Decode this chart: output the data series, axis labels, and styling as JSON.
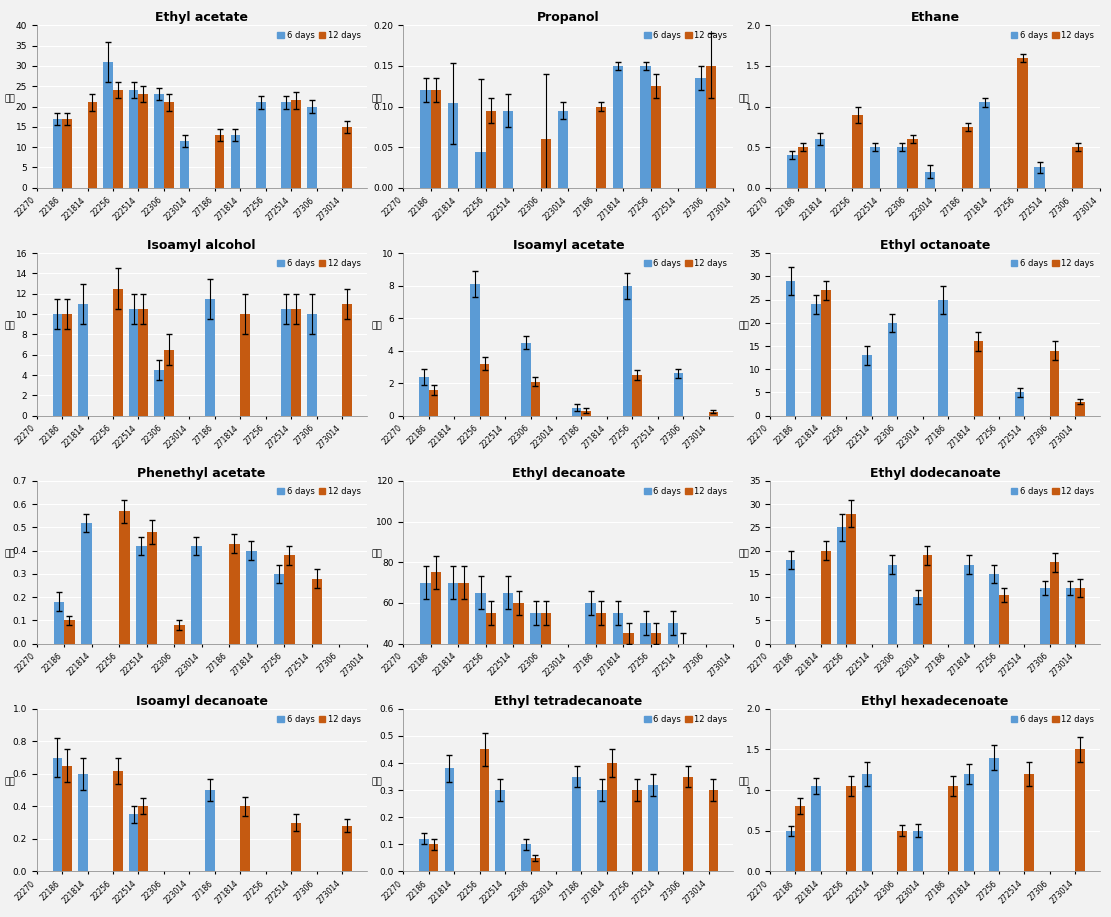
{
  "categories": [
    "22270",
    "22186",
    "221814",
    "22256",
    "222514",
    "22306",
    "223014",
    "27186",
    "271814",
    "27256",
    "272514",
    "27306",
    "273014"
  ],
  "blue_color": "#5B9BD5",
  "orange_color": "#C55A11",
  "legend_labels": [
    "6 days",
    "12 days"
  ],
  "ylabel": "백만",
  "bg_color": "#F2F2F2",
  "subplots": [
    {
      "title": "Ethyl acetate",
      "ylim": [
        0,
        40
      ],
      "yticks": [
        0,
        5,
        10,
        15,
        20,
        25,
        30,
        35,
        40
      ],
      "blue_vals": [
        0,
        17,
        0,
        31,
        24,
        23,
        11.5,
        0,
        13,
        21,
        21,
        20,
        0
      ],
      "blue_errs": [
        0,
        1.5,
        0,
        5,
        2,
        1.5,
        1.5,
        0,
        1.5,
        1.5,
        1.5,
        1.5,
        0
      ],
      "orange_vals": [
        0,
        17,
        21,
        24,
        23,
        21,
        0,
        13,
        0,
        0,
        21.5,
        0,
        15
      ],
      "orange_errs": [
        0,
        1.5,
        2,
        2,
        2,
        2,
        0,
        1.5,
        0,
        0,
        2,
        0,
        1.5
      ]
    },
    {
      "title": "Propanol",
      "ylim": [
        0,
        0.2
      ],
      "yticks": [
        0,
        0.05,
        0.1,
        0.15,
        0.2
      ],
      "blue_vals": [
        0,
        0.12,
        0.104,
        0.044,
        0.095,
        0,
        0.095,
        0,
        0.15,
        0.15,
        0,
        0.135,
        0
      ],
      "blue_errs": [
        0,
        0.015,
        0.05,
        0.09,
        0.02,
        0,
        0.01,
        0,
        0.005,
        0.005,
        0,
        0.015,
        0
      ],
      "orange_vals": [
        0,
        0.12,
        0,
        0.095,
        0,
        0.06,
        0,
        0.1,
        0,
        0.125,
        0,
        0.15,
        0
      ],
      "orange_errs": [
        0,
        0.015,
        0,
        0.015,
        0,
        0.08,
        0,
        0.005,
        0,
        0.015,
        0,
        0.04,
        0
      ]
    },
    {
      "title": "Ethane",
      "ylim": [
        0,
        2
      ],
      "yticks": [
        0,
        0.5,
        1.0,
        1.5,
        2.0
      ],
      "blue_vals": [
        0,
        0.4,
        0.6,
        0,
        0.5,
        0.5,
        0.2,
        0,
        1.05,
        0,
        0.25,
        0,
        0
      ],
      "blue_errs": [
        0,
        0.05,
        0.07,
        0,
        0.05,
        0.05,
        0.08,
        0,
        0.05,
        0,
        0.07,
        0,
        0
      ],
      "orange_vals": [
        0,
        0.5,
        0,
        0.9,
        0,
        0.6,
        0,
        0.75,
        0,
        1.6,
        0,
        0.5,
        0
      ],
      "orange_errs": [
        0,
        0.05,
        0,
        0.1,
        0,
        0.05,
        0,
        0.05,
        0,
        0.05,
        0,
        0.05,
        0
      ]
    },
    {
      "title": "Isoamyl alcohol",
      "ylim": [
        0,
        16
      ],
      "yticks": [
        0,
        2,
        4,
        6,
        8,
        10,
        12,
        14,
        16
      ],
      "blue_vals": [
        0,
        10,
        11,
        0,
        10.5,
        4.5,
        0,
        11.5,
        0,
        0,
        10.5,
        10,
        0
      ],
      "blue_errs": [
        0,
        1.5,
        2,
        0,
        1.5,
        1,
        0,
        2,
        0,
        0,
        1.5,
        2,
        0
      ],
      "orange_vals": [
        0,
        10,
        0,
        12.5,
        10.5,
        6.5,
        0,
        0,
        10,
        0,
        10.5,
        0,
        11
      ],
      "orange_errs": [
        0,
        1.5,
        0,
        2,
        1.5,
        1.5,
        0,
        0,
        2,
        0,
        1.5,
        0,
        1.5
      ]
    },
    {
      "title": "Isoamyl acetate",
      "ylim": [
        0,
        10
      ],
      "yticks": [
        0,
        2,
        4,
        6,
        8,
        10
      ],
      "blue_vals": [
        0,
        2.4,
        0,
        8.1,
        0,
        4.5,
        0,
        0.5,
        0,
        8.0,
        0,
        2.6,
        0
      ],
      "blue_errs": [
        0,
        0.5,
        0,
        0.8,
        0,
        0.4,
        0,
        0.2,
        0,
        0.8,
        0,
        0.3,
        0
      ],
      "orange_vals": [
        0,
        1.6,
        0,
        3.2,
        0,
        2.1,
        0,
        0.3,
        0,
        2.5,
        0,
        0,
        0.25
      ],
      "orange_errs": [
        0,
        0.3,
        0,
        0.4,
        0,
        0.3,
        0,
        0.15,
        0,
        0.3,
        0,
        0,
        0.1
      ]
    },
    {
      "title": "Ethyl octanoate",
      "ylim": [
        0,
        35
      ],
      "yticks": [
        0,
        5,
        10,
        15,
        20,
        25,
        30,
        35
      ],
      "blue_vals": [
        0,
        29,
        24,
        0,
        13,
        20,
        0,
        25,
        0,
        0,
        5,
        0,
        0
      ],
      "blue_errs": [
        0,
        3,
        2,
        0,
        2,
        2,
        0,
        3,
        0,
        0,
        1,
        0,
        0
      ],
      "orange_vals": [
        0,
        0,
        27,
        0,
        0,
        0,
        0,
        0,
        16,
        0,
        0,
        14,
        3
      ],
      "orange_errs": [
        0,
        0,
        2,
        0,
        0,
        0,
        0,
        0,
        2,
        0,
        0,
        2,
        0.5
      ]
    },
    {
      "title": "Phenethyl acetate",
      "ylim": [
        0,
        0.7
      ],
      "yticks": [
        0,
        0.1,
        0.2,
        0.3,
        0.4,
        0.5,
        0.6,
        0.7
      ],
      "blue_vals": [
        0,
        0.18,
        0.52,
        0,
        0.42,
        0,
        0.42,
        0,
        0.4,
        0.3,
        0,
        0,
        0
      ],
      "blue_errs": [
        0,
        0.04,
        0.04,
        0,
        0.04,
        0,
        0.04,
        0,
        0.04,
        0.04,
        0,
        0,
        0
      ],
      "orange_vals": [
        0,
        0.1,
        0,
        0.57,
        0.48,
        0.08,
        0,
        0.43,
        0,
        0.38,
        0.28,
        0,
        0
      ],
      "orange_errs": [
        0,
        0.02,
        0,
        0.05,
        0.05,
        0.02,
        0,
        0.04,
        0,
        0.04,
        0.04,
        0,
        0
      ]
    },
    {
      "title": "Ethyl decanoate",
      "ylim": [
        40,
        120
      ],
      "yticks": [
        40,
        60,
        80,
        100,
        120
      ],
      "blue_vals": [
        0,
        70,
        70,
        65,
        65,
        55,
        0,
        60,
        55,
        50,
        50,
        0,
        0
      ],
      "blue_errs": [
        0,
        8,
        8,
        8,
        8,
        6,
        0,
        6,
        6,
        6,
        6,
        0,
        0
      ],
      "orange_vals": [
        0,
        75,
        70,
        55,
        60,
        55,
        0,
        55,
        45,
        45,
        40,
        35,
        0
      ],
      "orange_errs": [
        0,
        8,
        8,
        6,
        6,
        6,
        0,
        6,
        5,
        5,
        5,
        4,
        0
      ]
    },
    {
      "title": "Ethyl dodecanoate",
      "ylim": [
        0,
        35
      ],
      "yticks": [
        0,
        5,
        10,
        15,
        20,
        25,
        30,
        35
      ],
      "blue_vals": [
        0,
        18,
        0,
        25,
        0,
        17,
        10,
        0,
        17,
        15,
        0,
        12,
        12
      ],
      "blue_errs": [
        0,
        2,
        0,
        3,
        0,
        2,
        1.5,
        0,
        2,
        2,
        0,
        1.5,
        1.5
      ],
      "orange_vals": [
        0,
        0,
        20,
        28,
        0,
        0,
        19,
        0,
        0,
        10.5,
        0,
        17.5,
        12
      ],
      "orange_errs": [
        0,
        0,
        2,
        3,
        0,
        0,
        2,
        0,
        0,
        1.5,
        0,
        2,
        2
      ]
    },
    {
      "title": "Isoamyl decanoate",
      "ylim": [
        0,
        1.0
      ],
      "yticks": [
        0,
        0.2,
        0.4,
        0.6,
        0.8,
        1.0
      ],
      "blue_vals": [
        0,
        0.7,
        0.6,
        0,
        0.35,
        0,
        0,
        0.5,
        0,
        0,
        0,
        0,
        0
      ],
      "blue_errs": [
        0,
        0.12,
        0.1,
        0,
        0.05,
        0,
        0,
        0.07,
        0,
        0,
        0,
        0,
        0
      ],
      "orange_vals": [
        0,
        0.65,
        0,
        0.62,
        0.4,
        0,
        0,
        0,
        0.4,
        0,
        0.3,
        0,
        0.28
      ],
      "orange_errs": [
        0,
        0.1,
        0,
        0.08,
        0.05,
        0,
        0,
        0,
        0.06,
        0,
        0.05,
        0,
        0.04
      ]
    },
    {
      "title": "Ethyl tetradecanoate",
      "ylim": [
        0,
        0.6
      ],
      "yticks": [
        0,
        0.1,
        0.2,
        0.3,
        0.4,
        0.5,
        0.6
      ],
      "blue_vals": [
        0,
        0.12,
        0.38,
        0,
        0.3,
        0.1,
        0,
        0.35,
        0.3,
        0,
        0.32,
        0,
        0
      ],
      "blue_errs": [
        0,
        0.02,
        0.05,
        0,
        0.04,
        0.02,
        0,
        0.04,
        0.04,
        0,
        0.04,
        0,
        0
      ],
      "orange_vals": [
        0,
        0.1,
        0,
        0.45,
        0,
        0.05,
        0,
        0,
        0.4,
        0.3,
        0,
        0.35,
        0.3
      ],
      "orange_errs": [
        0,
        0.02,
        0,
        0.06,
        0,
        0.01,
        0,
        0,
        0.05,
        0.04,
        0,
        0.04,
        0.04
      ]
    },
    {
      "title": "Ethyl hexadecenoate",
      "ylim": [
        0,
        2.0
      ],
      "yticks": [
        0,
        0.5,
        1.0,
        1.5,
        2.0
      ],
      "blue_vals": [
        0,
        0.5,
        1.05,
        0,
        1.2,
        0,
        0.5,
        0,
        1.2,
        1.4,
        0,
        0,
        0
      ],
      "blue_errs": [
        0,
        0.06,
        0.1,
        0,
        0.15,
        0,
        0.08,
        0,
        0.12,
        0.15,
        0,
        0,
        0
      ],
      "orange_vals": [
        0,
        0.8,
        0,
        1.05,
        0,
        0.5,
        0,
        1.05,
        0,
        0,
        1.2,
        0,
        1.5
      ],
      "orange_errs": [
        0,
        0.1,
        0,
        0.12,
        0,
        0.07,
        0,
        0.12,
        0,
        0,
        0.15,
        0,
        0.15
      ]
    }
  ]
}
